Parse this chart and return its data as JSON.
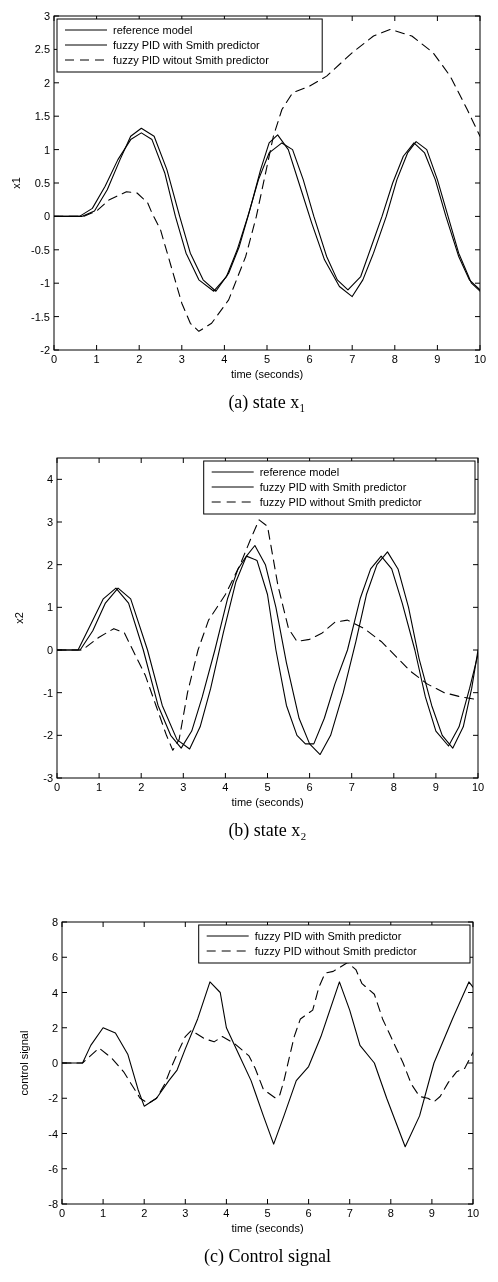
{
  "chart_data": [
    {
      "type": "line",
      "title": "(a) state x₁",
      "xlabel": "time (seconds)",
      "ylabel": "x1",
      "xlim": [
        0,
        10
      ],
      "ylim": [
        -2,
        3
      ],
      "xticks": [
        0,
        1,
        2,
        3,
        4,
        5,
        6,
        7,
        8,
        9,
        10
      ],
      "yticks": [
        -2,
        -1.5,
        -1,
        -0.5,
        0,
        0.5,
        1,
        1.5,
        2,
        2.5,
        3
      ],
      "grid": false,
      "legend": "top left",
      "marker": "none",
      "series": [
        {
          "name": "reference model",
          "color": "#000000",
          "line_style": "solid",
          "x": [
            0,
            0.6,
            0.9,
            1.2,
            1.5,
            1.8,
            2.05,
            2.3,
            2.6,
            2.85,
            3.1,
            3.4,
            3.75,
            4.05,
            4.3,
            4.55,
            4.8,
            5.05,
            5.35,
            5.6,
            5.85,
            6.1,
            6.4,
            6.65,
            6.9,
            7.2,
            7.45,
            7.7,
            7.95,
            8.2,
            8.45,
            8.7,
            8.95,
            9.2,
            9.5,
            9.75,
            10
          ],
          "values": [
            0,
            0,
            0.12,
            0.45,
            0.85,
            1.15,
            1.25,
            1.15,
            0.65,
            0,
            -0.55,
            -0.95,
            -1.12,
            -0.9,
            -0.5,
            0,
            0.55,
            0.95,
            1.1,
            1.0,
            0.55,
            0,
            -0.6,
            -0.95,
            -1.1,
            -0.9,
            -0.45,
            0,
            0.5,
            0.9,
            1.1,
            0.95,
            0.55,
            0,
            -0.6,
            -0.95,
            -1.1
          ]
        },
        {
          "name": "fuzzy PID with Smith predictor",
          "color": "#000000",
          "line_style": "solid",
          "x": [
            0,
            0.65,
            0.95,
            1.25,
            1.55,
            1.8,
            2.05,
            2.35,
            2.65,
            2.95,
            3.2,
            3.5,
            3.8,
            4.1,
            4.35,
            4.6,
            4.85,
            5.05,
            5.25,
            5.5,
            5.75,
            6.05,
            6.35,
            6.7,
            7.0,
            7.25,
            7.5,
            7.8,
            8.05,
            8.3,
            8.5,
            8.75,
            9.0,
            9.25,
            9.5,
            9.8,
            10
          ],
          "values": [
            0,
            0,
            0.08,
            0.4,
            0.85,
            1.2,
            1.32,
            1.2,
            0.7,
            0,
            -0.55,
            -0.95,
            -1.12,
            -0.85,
            -0.45,
            0.1,
            0.7,
            1.1,
            1.22,
            1.0,
            0.5,
            -0.1,
            -0.65,
            -1.05,
            -1.2,
            -0.95,
            -0.55,
            0,
            0.55,
            0.95,
            1.12,
            1.0,
            0.55,
            0,
            -0.55,
            -1.0,
            -1.12
          ]
        },
        {
          "name": "fuzzy PID witout Smith predictor",
          "color": "#000000",
          "line_style": "dashed",
          "x": [
            0,
            0.7,
            1.0,
            1.3,
            1.7,
            1.95,
            2.2,
            2.3,
            2.5,
            2.75,
            3.0,
            3.2,
            3.4,
            3.7,
            4.1,
            4.5,
            4.75,
            4.95,
            5.15,
            5.35,
            5.6,
            6.0,
            6.4,
            7.0,
            7.5,
            7.9,
            8.4,
            8.9,
            9.3,
            9.7,
            10
          ],
          "values": [
            0,
            0,
            0.08,
            0.25,
            0.37,
            0.35,
            0.2,
            0.05,
            -0.2,
            -0.75,
            -1.3,
            -1.6,
            -1.72,
            -1.6,
            -1.25,
            -0.6,
            0,
            0.6,
            1.2,
            1.6,
            1.85,
            1.95,
            2.1,
            2.45,
            2.7,
            2.8,
            2.7,
            2.45,
            2.1,
            1.6,
            1.2
          ]
        }
      ]
    },
    {
      "type": "line",
      "title": "(b) state x₂",
      "xlabel": "time (seconds)",
      "ylabel": "x2",
      "xlim": [
        0,
        10
      ],
      "ylim": [
        -3,
        4.5
      ],
      "xticks": [
        0,
        1,
        2,
        3,
        4,
        5,
        6,
        7,
        8,
        9,
        10
      ],
      "yticks": [
        -3,
        -2,
        -1,
        0,
        1,
        2,
        3,
        4
      ],
      "grid": false,
      "legend": "top right",
      "marker": "none",
      "series": [
        {
          "name": "reference model",
          "color": "#000000",
          "line_style": "solid",
          "x": [
            0,
            0.5,
            0.8,
            1.1,
            1.4,
            1.7,
            2.05,
            2.4,
            2.7,
            2.95,
            3.2,
            3.45,
            3.75,
            4.05,
            4.3,
            4.5,
            4.75,
            5.0,
            5.2,
            5.45,
            5.7,
            5.9,
            6.1,
            6.35,
            6.6,
            6.9,
            7.2,
            7.45,
            7.7,
            7.95,
            8.2,
            8.5,
            8.75,
            9.0,
            9.3,
            9.55,
            9.8,
            10
          ],
          "values": [
            0,
            0,
            0.6,
            1.2,
            1.45,
            1.1,
            0,
            -1.3,
            -2.0,
            -2.3,
            -1.9,
            -1.1,
            0,
            1.2,
            1.9,
            2.2,
            2.1,
            1.3,
            0,
            -1.3,
            -2.0,
            -2.2,
            -2.2,
            -1.6,
            -0.8,
            0,
            1.2,
            1.9,
            2.2,
            1.9,
            1.1,
            0,
            -1.1,
            -1.9,
            -2.25,
            -1.8,
            -0.9,
            -0.1
          ]
        },
        {
          "name": "fuzzy PID with Smith predictor",
          "color": "#000000",
          "line_style": "solid",
          "x": [
            0,
            0.55,
            0.85,
            1.15,
            1.45,
            1.75,
            2.15,
            2.5,
            2.85,
            3.15,
            3.4,
            3.65,
            3.95,
            4.25,
            4.5,
            4.7,
            4.95,
            5.2,
            5.45,
            5.75,
            6.0,
            6.25,
            6.5,
            6.8,
            7.1,
            7.35,
            7.6,
            7.85,
            8.1,
            8.35,
            8.6,
            8.9,
            9.15,
            9.4,
            9.65,
            9.85,
            10
          ],
          "values": [
            0,
            0,
            0.45,
            1.1,
            1.45,
            1.2,
            0,
            -1.3,
            -2.1,
            -2.32,
            -1.8,
            -0.9,
            0.4,
            1.6,
            2.2,
            2.45,
            2.0,
            1.0,
            -0.3,
            -1.6,
            -2.2,
            -2.45,
            -2.0,
            -1.0,
            0.2,
            1.3,
            2.0,
            2.3,
            1.9,
            1.0,
            -0.2,
            -1.3,
            -2.0,
            -2.3,
            -1.8,
            -0.9,
            0
          ]
        },
        {
          "name": "fuzzy PID without Smith predictor",
          "color": "#000000",
          "line_style": "dashed",
          "x": [
            0,
            0.6,
            1.0,
            1.35,
            1.6,
            1.8,
            2.1,
            2.35,
            2.6,
            2.75,
            2.9,
            3.1,
            3.35,
            3.6,
            4.0,
            4.35,
            4.6,
            4.8,
            5.0,
            5.25,
            5.5,
            5.7,
            6.0,
            6.3,
            6.6,
            6.9,
            7.3,
            7.7,
            8.1,
            8.4,
            8.8,
            9.2,
            9.6,
            9.9
          ],
          "values": [
            0,
            0,
            0.3,
            0.5,
            0.4,
            0,
            -0.6,
            -1.3,
            -2.0,
            -2.35,
            -2.1,
            -1.0,
            0,
            0.7,
            1.3,
            2.0,
            2.6,
            3.05,
            2.9,
            1.5,
            0.5,
            0.2,
            0.25,
            0.4,
            0.65,
            0.7,
            0.5,
            0.2,
            -0.2,
            -0.5,
            -0.8,
            -1.0,
            -1.1,
            -1.15
          ]
        }
      ]
    },
    {
      "type": "line",
      "title": "(c) Control signal",
      "xlabel": "time (seconds)",
      "ylabel": "control signal",
      "xlim": [
        0,
        10
      ],
      "ylim": [
        -8,
        8
      ],
      "xticks": [
        0,
        1,
        2,
        3,
        4,
        5,
        6,
        7,
        8,
        9,
        10
      ],
      "yticks": [
        -8,
        -6,
        -4,
        -2,
        0,
        2,
        4,
        6,
        8
      ],
      "grid": false,
      "legend": "top right",
      "marker": "none",
      "series": [
        {
          "name": "fuzzy PID with Smith predictor",
          "color": "#000000",
          "line_style": "solid",
          "x": [
            0,
            0.5,
            0.7,
            1.0,
            1.3,
            1.6,
            1.85,
            2.0,
            2.3,
            2.6,
            2.8,
            3.0,
            3.3,
            3.6,
            3.85,
            4.0,
            4.3,
            4.6,
            4.9,
            5.15,
            5.4,
            5.7,
            6.0,
            6.3,
            6.75,
            7.0,
            7.25,
            7.6,
            7.9,
            8.35,
            8.7,
            9.05,
            9.5,
            9.9,
            10
          ],
          "values": [
            0,
            0,
            1.0,
            2.0,
            1.7,
            0.5,
            -1.5,
            -2.45,
            -2.0,
            -1.0,
            -0.4,
            0.8,
            2.5,
            4.6,
            4.0,
            2.0,
            0.5,
            -1.0,
            -3.0,
            -4.6,
            -3.0,
            -1.0,
            -0.2,
            1.5,
            4.6,
            3.0,
            1.0,
            0,
            -2.0,
            -4.75,
            -3.0,
            0,
            2.5,
            4.6,
            4.3
          ]
        },
        {
          "name": "fuzzy PID without Smith predictor",
          "color": "#000000",
          "line_style": "dashed",
          "x": [
            0,
            0.5,
            0.9,
            1.2,
            1.5,
            1.9,
            2.1,
            2.3,
            2.5,
            2.65,
            2.8,
            3.0,
            3.15,
            3.45,
            3.7,
            3.9,
            4.2,
            4.55,
            4.7,
            4.9,
            5.2,
            5.3,
            5.4,
            5.65,
            5.8,
            6.1,
            6.25,
            6.4,
            6.6,
            6.95,
            7.15,
            7.3,
            7.6,
            7.8,
            8.0,
            8.3,
            8.5,
            8.7,
            8.9,
            9.05,
            9.2,
            9.4,
            9.6,
            9.8,
            10
          ],
          "values": [
            0,
            0,
            0.85,
            0.3,
            -0.5,
            -2.0,
            -2.3,
            -2.0,
            -1.2,
            -0.3,
            0.5,
            1.5,
            1.85,
            1.4,
            1.2,
            1.5,
            1.1,
            0.4,
            -0.3,
            -1.5,
            -2.0,
            -1.8,
            -1.0,
            1.5,
            2.5,
            3.0,
            4.3,
            5.1,
            5.2,
            5.7,
            5.3,
            4.5,
            3.9,
            2.5,
            1.5,
            0,
            -1.2,
            -1.9,
            -2.0,
            -2.2,
            -1.9,
            -1.1,
            -0.5,
            -0.3,
            0.6
          ]
        }
      ]
    }
  ]
}
